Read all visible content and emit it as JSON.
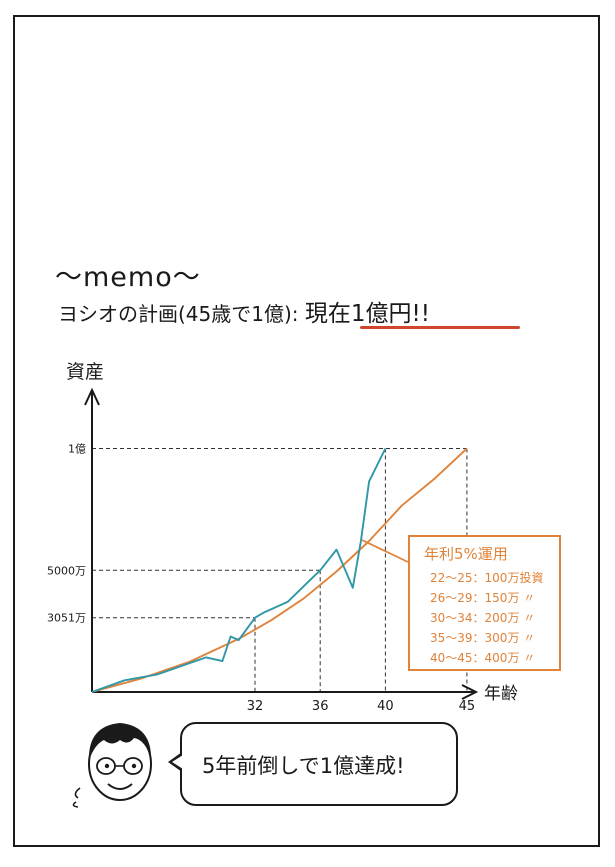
{
  "memo_title": "〜memo〜",
  "plan": {
    "text": "ヨシオの計画(45歳で1億):",
    "highlight": "現在1億円!!"
  },
  "colors": {
    "planned_line": "#e0833a",
    "actual_line": "#2f97a8",
    "accent_underline": "#d0452b"
  },
  "chart_data": {
    "type": "line",
    "ylabel": "資産",
    "xlabel": "年齢",
    "x_ticks": [
      32,
      36,
      40,
      45
    ],
    "x_tick_labels": [
      "32",
      "36",
      "40",
      "45"
    ],
    "y_ticks": [
      3051,
      5000,
      10000
    ],
    "y_tick_labels": [
      "3051万",
      "5000万",
      "1億"
    ],
    "y_unit": "万",
    "xlim": [
      22,
      48
    ],
    "ylim": [
      0,
      12300
    ],
    "series": [
      {
        "key": "planned",
        "color": "#e0833a",
        "x": [
          22,
          25,
          28,
          31,
          33,
          35,
          37,
          39,
          41,
          43,
          45
        ],
        "y": [
          0,
          550,
          1250,
          2180,
          2950,
          3850,
          4950,
          6200,
          7650,
          8750,
          10000
        ]
      },
      {
        "key": "actual",
        "color": "#2f97a8",
        "x": [
          22,
          24,
          26,
          29,
          30,
          30.5,
          31,
          32,
          32.5,
          34,
          35,
          36,
          37,
          38,
          38.5,
          39,
          40
        ],
        "y": [
          0,
          480,
          720,
          1420,
          1270,
          2280,
          2130,
          3051,
          3250,
          3700,
          4350,
          5000,
          5850,
          4280,
          6200,
          8650,
          10000
        ]
      }
    ],
    "guides": [
      {
        "x": 32,
        "y": 3051
      },
      {
        "x": 36,
        "y": 5000
      },
      {
        "x": 40,
        "y": 10000
      },
      {
        "x": 45,
        "y": 10000
      }
    ],
    "annotation": {
      "title": "年利5%運用",
      "lines": [
        "22〜25：100万投資",
        "26〜29：150万 〃",
        "30〜34：200万 〃",
        "35〜39：300万 〃",
        "40〜45：400万 〃"
      ]
    }
  },
  "speech": {
    "text": "5年前倒しで1億達成!"
  }
}
